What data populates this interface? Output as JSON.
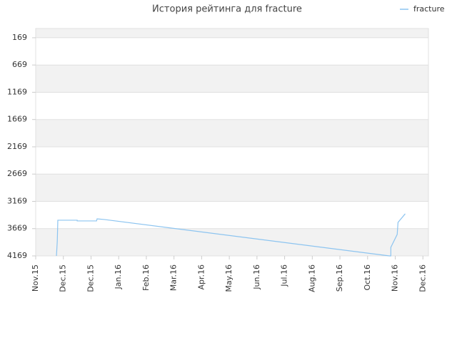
{
  "chart_data": {
    "type": "line",
    "title": "История рейтинга для fracture",
    "x": [
      0.75,
      0.78,
      0.8,
      1.5,
      1.5,
      2.2,
      2.22,
      2.48,
      12.79,
      12.84,
      12.84,
      13.07,
      13.1,
      13.36
    ],
    "series": [
      {
        "name": "fracture",
        "color": "#8cc4f0",
        "values": [
          4169,
          3900,
          3515,
          3515,
          3528,
          3528,
          3489,
          3502,
          4169,
          4169,
          4012,
          3776,
          3554,
          3397
        ]
      }
    ],
    "xlim": [
      0,
      14.2
    ],
    "xticks": [
      {
        "value": 0,
        "label": "Nov.15"
      },
      {
        "value": 1,
        "label": "Dec.15"
      },
      {
        "value": 2,
        "label": "Dec.15"
      },
      {
        "value": 3,
        "label": "Jan.16"
      },
      {
        "value": 4,
        "label": "Feb.16"
      },
      {
        "value": 5,
        "label": "Mar.16"
      },
      {
        "value": 6,
        "label": "Apr.16"
      },
      {
        "value": 7,
        "label": "May.16"
      },
      {
        "value": 8,
        "label": "Jun.16"
      },
      {
        "value": 9,
        "label": "Jul.16"
      },
      {
        "value": 10,
        "label": "Aug.16"
      },
      {
        "value": 11,
        "label": "Sep.16"
      },
      {
        "value": 12,
        "label": "Oct.16"
      },
      {
        "value": 13,
        "label": "Nov.16"
      },
      {
        "value": 14,
        "label": "Dec.16"
      }
    ],
    "ylim": [
      4169,
      0
    ],
    "yticks": [
      169,
      669,
      1169,
      1669,
      2169,
      2669,
      3169,
      3669,
      4169
    ],
    "grid": true,
    "legend": "top-right"
  }
}
